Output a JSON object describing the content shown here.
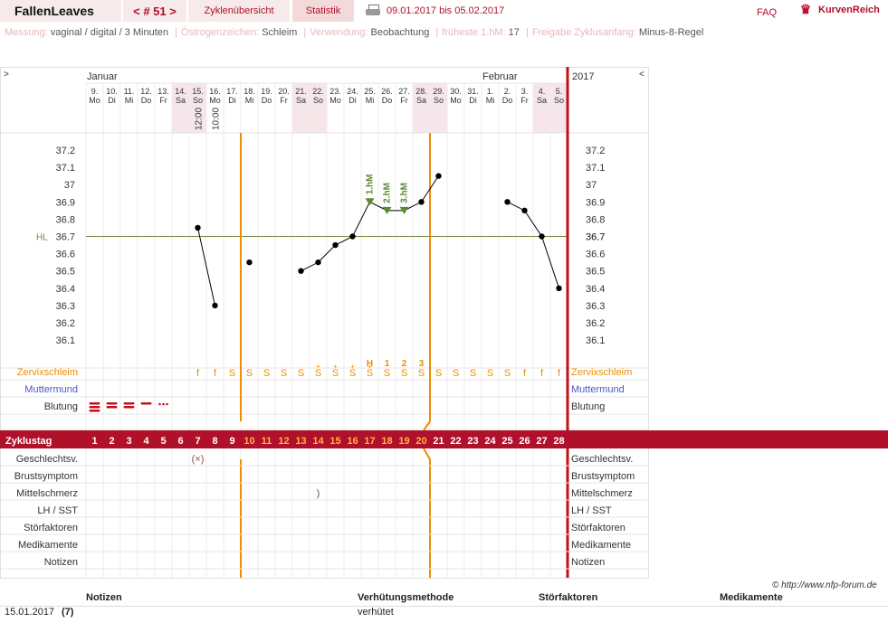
{
  "header": {
    "brand": "FallenLeaves",
    "cycle_nav": "< # 51 >",
    "tab_cycles": "Zyklenübersicht",
    "tab_stats": "Statistik",
    "date_range": "09.01.2017 bis 05.02.2017",
    "faq": "FAQ",
    "logo_text": "KurvenReich"
  },
  "info": [
    {
      "key": "Messung:",
      "value": "vaginal / digital / 3 Minuten"
    },
    {
      "key": "Östrogenzeichen:",
      "value": "Schleim"
    },
    {
      "key": "Verwendung:",
      "value": "Beobachtung"
    },
    {
      "key": "früheste 1.hM:",
      "value": "17"
    },
    {
      "key": "Freigabe Zyklusanfang:",
      "value": "Minus-8-Regel"
    }
  ],
  "chart": {
    "nav_prev": ">",
    "nav_next": "<",
    "month1": "Januar",
    "month2": "Februar",
    "year": "2017",
    "dates": [
      "9.",
      "10.",
      "11.",
      "12.",
      "13.",
      "14.",
      "15.",
      "16.",
      "17.",
      "18.",
      "19.",
      "20.",
      "21.",
      "22.",
      "23.",
      "24.",
      "25.",
      "26.",
      "27.",
      "28.",
      "29.",
      "30.",
      "31.",
      "1.",
      "2.",
      "3.",
      "4.",
      "5."
    ],
    "weekdays": [
      "Mo",
      "Di",
      "Mi",
      "Do",
      "Fr",
      "Sa",
      "So",
      "Mo",
      "Di",
      "Mi",
      "Do",
      "Fr",
      "Sa",
      "So",
      "Mo",
      "Di",
      "Mi",
      "Do",
      "Fr",
      "Sa",
      "So",
      "Mo",
      "Di",
      "Mi",
      "Do",
      "Fr",
      "Sa",
      "So"
    ],
    "weekend": [
      5,
      6,
      12,
      13,
      19,
      20,
      26,
      27
    ],
    "times": [
      {
        "day": 6,
        "text": "12:00"
      },
      {
        "day": 7,
        "text": "10:00"
      }
    ],
    "temp_ticks": [
      37.2,
      37.1,
      37,
      36.9,
      36.8,
      36.7,
      36.6,
      36.5,
      36.4,
      36.3,
      36.2,
      36.1
    ],
    "hl_label": "HL",
    "hl_value": 36.7,
    "temps": [
      null,
      null,
      null,
      null,
      null,
      null,
      36.75,
      36.3,
      null,
      36.55,
      null,
      null,
      36.5,
      36.55,
      36.65,
      36.7,
      36.9,
      36.85,
      36.85,
      36.9,
      37.05,
      null,
      null,
      null,
      36.9,
      36.85,
      36.7,
      36.4
    ],
    "high_marks": [
      {
        "day": 16,
        "text": "1.hM"
      },
      {
        "day": 17,
        "text": "2.hM"
      },
      {
        "day": 18,
        "text": "3.hM"
      }
    ],
    "mucus_marks": [
      {
        "day": 16,
        "text": "H"
      },
      {
        "day": 17,
        "text": "1"
      },
      {
        "day": 18,
        "text": "2"
      },
      {
        "day": 19,
        "text": "3"
      }
    ],
    "mucus": [
      "",
      "",
      "",
      "",
      "",
      "",
      "f",
      "f",
      "S",
      "S",
      "S",
      "S",
      "S",
      "S+",
      "S+",
      "S+",
      "S+",
      "S",
      "S",
      "S",
      "S",
      "S",
      "S",
      "S",
      "S",
      "f",
      "f",
      "f"
    ],
    "rows_top": [
      "Zervixschleim",
      "Muttermund",
      "Blutung"
    ],
    "cycle_label": "Zyklustag",
    "cycle_days": [
      "1",
      "2",
      "3",
      "4",
      "5",
      "6",
      "7",
      "8",
      "9",
      "10",
      "11",
      "12",
      "13",
      "14",
      "15",
      "16",
      "17",
      "18",
      "19",
      "20",
      "21",
      "22",
      "23",
      "24",
      "25",
      "26",
      "27",
      "28"
    ],
    "rows_bottom": [
      "Geschlechtsv.",
      "Brustsymptom",
      "Mittelschmerz",
      "LH / SST",
      "Störfaktoren",
      "Medikamente",
      "Notizen"
    ]
  },
  "colors": {
    "accent": "#b0102a",
    "orange": "#f08c00",
    "grid": "#dcdcdc",
    "weekend": "#f6e6ea",
    "hl": "#6f8a3a"
  },
  "credit": "© http://www.nfp-forum.de",
  "notes": {
    "headers": [
      "Notizen",
      "Verhütungsmethode",
      "Störfaktoren",
      "Medikamente"
    ],
    "row": {
      "date": "15.01.2017",
      "day": "(7)",
      "method": "verhütet"
    }
  }
}
